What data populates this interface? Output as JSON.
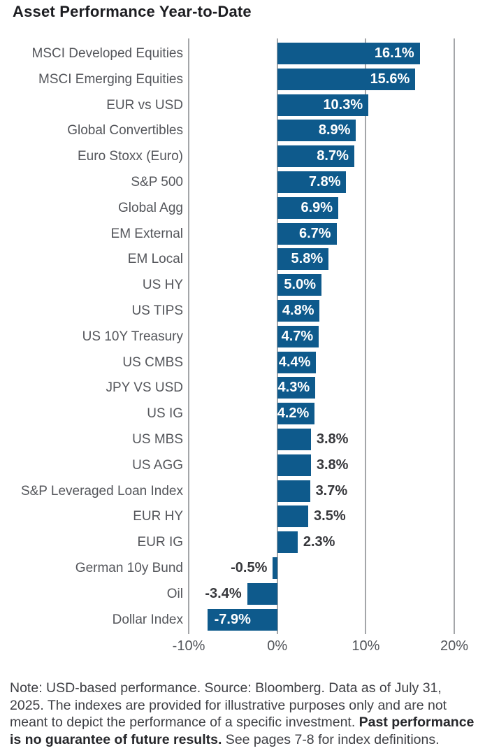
{
  "title": "Asset Performance Year-to-Date",
  "chart_data": {
    "type": "bar",
    "orientation": "horizontal",
    "title": "Asset Performance Year-to-Date",
    "categories": [
      "MSCI Developed Equities",
      "MSCI Emerging Equities",
      "EUR vs USD",
      "Global Convertibles",
      "Euro Stoxx (Euro)",
      "S&P 500",
      "Global Agg",
      "EM External",
      "EM Local",
      "US HY",
      "US TIPS",
      "US 10Y Treasury",
      "US CMBS",
      "JPY VS USD",
      "US IG",
      "US MBS",
      "US AGG",
      "S&P Leveraged Loan Index",
      "EUR HY",
      "EUR IG",
      "German 10y Bund",
      "Oil",
      "Dollar Index"
    ],
    "values": [
      16.1,
      15.6,
      10.3,
      8.9,
      8.7,
      7.8,
      6.9,
      6.7,
      5.8,
      5.0,
      4.8,
      4.7,
      4.4,
      4.3,
      4.2,
      3.8,
      3.8,
      3.7,
      3.5,
      2.3,
      -0.5,
      -3.4,
      -7.9
    ],
    "value_labels": [
      "16.1%",
      "15.6%",
      "10.3%",
      "8.9%",
      "8.7%",
      "7.8%",
      "6.9%",
      "6.7%",
      "5.8%",
      "5.0%",
      "4.8%",
      "4.7%",
      "4.4%",
      "4.3%",
      "4.2%",
      "3.8%",
      "3.8%",
      "3.7%",
      "3.5%",
      "2.3%",
      "-0.5%",
      "-3.4%",
      "-7.9%"
    ],
    "xlim": [
      -10,
      20
    ],
    "x_ticks": [
      {
        "value": -10,
        "label": "-10%"
      },
      {
        "value": 0,
        "label": "0%"
      },
      {
        "value": 10,
        "label": "10%"
      },
      {
        "value": 20,
        "label": "20%"
      }
    ],
    "grid": "vertical-only",
    "legend": "none",
    "bar_color": "#0e5a8c",
    "gridline_color": "#a4a6a9",
    "category_label_color": "#54565b",
    "value_inside_color": "#ffffff",
    "value_outside_color": "#37383c"
  },
  "footnote": {
    "normal1": "Note: USD-based performance. Source: Bloomberg. Data as of July 31, 2025. The indexes are provided for illustrative purposes only and are not meant to depict the performance of a specific investment. ",
    "bold": "Past performance is no guarantee of future results.",
    "normal2": " See pages 7-8 for index definitions."
  }
}
